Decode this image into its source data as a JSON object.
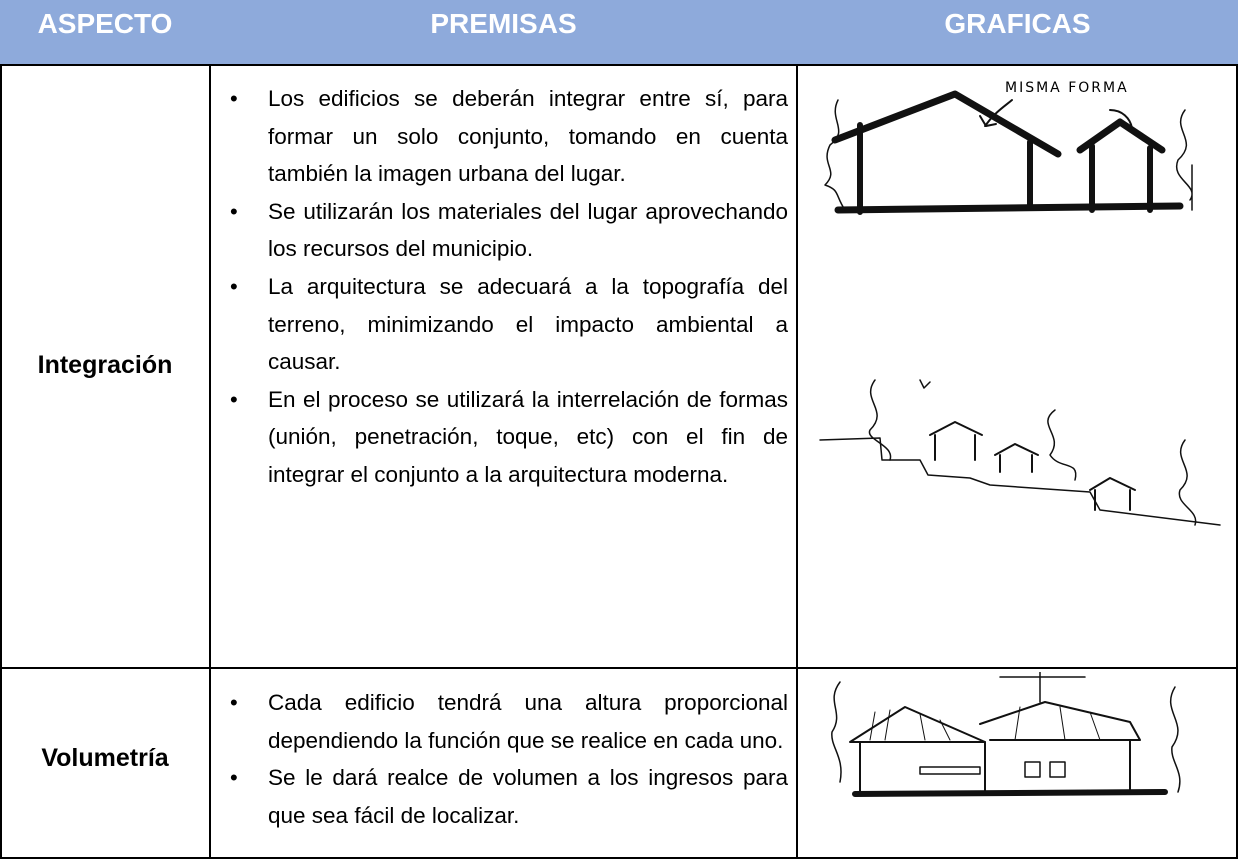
{
  "table": {
    "header": [
      "ASPECTO",
      "PREMISAS",
      "GRAFICAS"
    ],
    "rows": [
      {
        "aspect": "Integración",
        "premises": [
          "Los edificios se deberán integrar entre sí, para formar un solo conjunto, tomando en cuenta también la imagen urbana del lugar.",
          "Se utilizarán los materiales del lugar aprovechando los recursos del municipio.",
          "La arquitectura se adecuará a la topografía del terreno, minimizando el impacto ambiental a causar.",
          "En el proceso se utilizará la interrelación de formas (unión, penetración, toque, etc) con el fin de integrar el conjunto a la arquitectura moderna."
        ],
        "sketch_label": "MISMA FORMA"
      },
      {
        "aspect": "Volumetría",
        "premises": [
          "Cada edificio tendrá una altura proporcional dependiendo la función que se realice en cada uno.",
          "Se le dará realce de volumen a los ingresos para que sea fácil de localizar."
        ]
      }
    ]
  }
}
